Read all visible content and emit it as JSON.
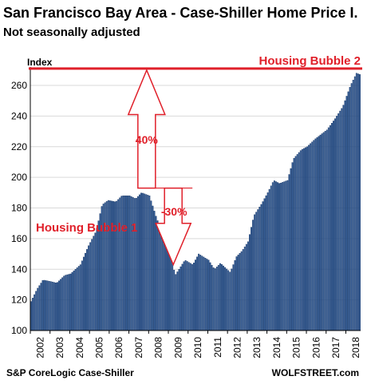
{
  "title": "San Francisco Bay Area - Case-Shiller Home Price I.",
  "subtitle": "Not seasonally adjusted",
  "footer": {
    "source": "S&P CoreLogic Case-Shiller",
    "brand": "WOLFSTREET.com"
  },
  "colors": {
    "bar": "#2e5b9a",
    "bar_edge": "#17335f",
    "accent": "#e0202a"
  },
  "chart_data": {
    "type": "bar",
    "ylabel": "Index",
    "ylim": [
      100,
      272
    ],
    "yticks": [
      100,
      120,
      140,
      160,
      180,
      200,
      220,
      240,
      260
    ],
    "xticks": [
      "2002",
      "2003",
      "2004",
      "2005",
      "2006",
      "2007",
      "2008",
      "2009",
      "2010",
      "2011",
      "2012",
      "2013",
      "2014",
      "2015",
      "2016",
      "2017",
      "2018"
    ],
    "x_start": "2002-01",
    "x_end": "2018-09",
    "keyframes": [
      [
        2002.0,
        119
      ],
      [
        2002.3,
        127
      ],
      [
        2002.6,
        133
      ],
      [
        2003.0,
        132
      ],
      [
        2003.3,
        131
      ],
      [
        2003.7,
        136
      ],
      [
        2004.0,
        137
      ],
      [
        2004.5,
        143
      ],
      [
        2004.9,
        155
      ],
      [
        2005.3,
        165
      ],
      [
        2005.6,
        182
      ],
      [
        2005.9,
        185
      ],
      [
        2006.3,
        184
      ],
      [
        2006.6,
        188
      ],
      [
        2007.0,
        188
      ],
      [
        2007.3,
        186
      ],
      [
        2007.6,
        190
      ],
      [
        2008.0,
        188
      ],
      [
        2008.2,
        180
      ],
      [
        2008.4,
        172
      ],
      [
        2008.8,
        165
      ],
      [
        2009.1,
        150
      ],
      [
        2009.3,
        136
      ],
      [
        2009.5,
        140
      ],
      [
        2009.8,
        146
      ],
      [
        2010.2,
        143
      ],
      [
        2010.5,
        150
      ],
      [
        2011.0,
        146
      ],
      [
        2011.3,
        140
      ],
      [
        2011.6,
        144
      ],
      [
        2012.1,
        138
      ],
      [
        2012.4,
        148
      ],
      [
        2012.7,
        152
      ],
      [
        2013.0,
        158
      ],
      [
        2013.3,
        175
      ],
      [
        2013.7,
        183
      ],
      [
        2014.0,
        190
      ],
      [
        2014.3,
        198
      ],
      [
        2014.6,
        196
      ],
      [
        2015.0,
        198
      ],
      [
        2015.3,
        212
      ],
      [
        2015.7,
        218
      ],
      [
        2016.0,
        220
      ],
      [
        2016.4,
        225
      ],
      [
        2016.7,
        228
      ],
      [
        2017.0,
        231
      ],
      [
        2017.4,
        238
      ],
      [
        2017.8,
        246
      ],
      [
        2018.2,
        260
      ],
      [
        2018.5,
        268
      ],
      [
        2018.7,
        267
      ]
    ],
    "reference_line": {
      "value": 271,
      "label": "Housing Bubble 2"
    },
    "annotations": [
      {
        "text": "Housing Bubble 1"
      },
      {
        "text": "40%"
      },
      {
        "text": "-30%"
      }
    ]
  }
}
